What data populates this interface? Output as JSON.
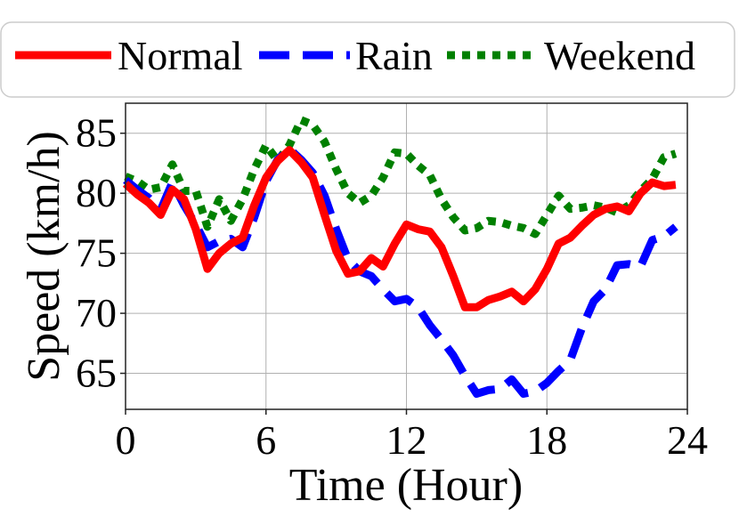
{
  "chart_data": {
    "type": "line",
    "title": "",
    "xlabel": "Time (Hour)",
    "ylabel": "Speed (km/h)",
    "xlim": [
      0,
      24
    ],
    "ylim": [
      62,
      87.5
    ],
    "xticks": [
      0,
      6,
      12,
      18,
      24
    ],
    "yticks": [
      65,
      70,
      75,
      80,
      85
    ],
    "grid": true,
    "legend_position": "top",
    "series": [
      {
        "name": "Normal",
        "color": "#ff0000",
        "style": "solid",
        "x": [
          0,
          0.5,
          1,
          1.5,
          2,
          2.5,
          3,
          3.5,
          4,
          4.5,
          5,
          5.5,
          6,
          6.5,
          7,
          7.5,
          8,
          8.5,
          9,
          9.5,
          10,
          10.5,
          11,
          11.5,
          12,
          12.5,
          13,
          13.5,
          14,
          14.5,
          15,
          15.5,
          16,
          16.5,
          17,
          17.5,
          18,
          18.5,
          19,
          19.5,
          20,
          20.5,
          21,
          21.5,
          22,
          22.5,
          23,
          23.5
        ],
        "values": [
          80.8,
          79.9,
          79.2,
          78.2,
          80.3,
          79.5,
          77.0,
          73.7,
          75.0,
          75.8,
          76.3,
          79.0,
          81.3,
          82.7,
          83.6,
          82.6,
          81.3,
          78.2,
          75.2,
          73.3,
          73.5,
          74.6,
          73.9,
          75.8,
          77.4,
          77.0,
          76.8,
          75.5,
          73.1,
          70.5,
          70.5,
          71.1,
          71.4,
          71.8,
          71.0,
          72.0,
          73.7,
          75.8,
          76.3,
          77.3,
          78.2,
          78.7,
          78.9,
          78.5,
          80.0,
          80.9,
          80.6,
          80.7
        ]
      },
      {
        "name": "Rain",
        "color": "#0000ff",
        "style": "dashed",
        "x": [
          0,
          0.5,
          1,
          1.5,
          2,
          2.5,
          3,
          3.5,
          4,
          4.5,
          5,
          5.5,
          6,
          6.5,
          7,
          7.5,
          8,
          8.5,
          9,
          9.5,
          10,
          10.5,
          11,
          11.5,
          12,
          12.5,
          13,
          13.5,
          14,
          14.5,
          15,
          15.5,
          16,
          16.5,
          17,
          17.5,
          18,
          18.5,
          19,
          19.5,
          20,
          20.5,
          21,
          21.5,
          22,
          22.5,
          23,
          23.5
        ],
        "values": [
          81.1,
          80.3,
          79.6,
          78.6,
          80.9,
          79.0,
          77.4,
          75.5,
          76.0,
          76.2,
          75.5,
          78.0,
          81.0,
          82.8,
          83.7,
          82.8,
          81.7,
          79.8,
          77.0,
          74.5,
          73.5,
          73.1,
          72.0,
          71.0,
          71.2,
          70.5,
          69.0,
          67.8,
          66.5,
          64.8,
          63.3,
          63.6,
          63.7,
          64.5,
          63.3,
          63.5,
          64.2,
          65.2,
          66.1,
          68.8,
          71.0,
          72.0,
          74.0,
          74.1,
          73.9,
          76.1,
          76.4,
          77.2
        ]
      },
      {
        "name": "Weekend",
        "color": "#008000",
        "style": "dotted",
        "x": [
          0,
          0.5,
          1,
          1.5,
          2,
          2.5,
          3,
          3.5,
          4,
          4.5,
          5,
          5.5,
          6,
          6.5,
          7,
          7.5,
          8,
          8.5,
          9,
          9.5,
          10,
          10.5,
          11,
          11.5,
          12,
          12.5,
          13,
          13.5,
          14,
          14.5,
          15,
          15.5,
          16,
          16.5,
          17,
          17.5,
          18,
          18.5,
          19,
          19.5,
          20,
          20.5,
          21,
          21.5,
          22,
          22.5,
          23,
          23.5
        ],
        "values": [
          81.4,
          81.0,
          80.3,
          80.5,
          82.4,
          80.2,
          80.2,
          77.2,
          79.5,
          77.7,
          79.5,
          82.0,
          84.0,
          82.7,
          84.0,
          86.1,
          85.7,
          84.3,
          82.0,
          80.0,
          79.2,
          79.8,
          81.3,
          83.4,
          83.3,
          82.3,
          81.5,
          79.5,
          78.0,
          76.9,
          77.1,
          77.7,
          77.6,
          77.3,
          77.1,
          76.6,
          78.2,
          79.8,
          78.7,
          78.8,
          79.0,
          78.8,
          78.4,
          79.0,
          80.2,
          81.2,
          83.0,
          83.3
        ]
      }
    ]
  }
}
